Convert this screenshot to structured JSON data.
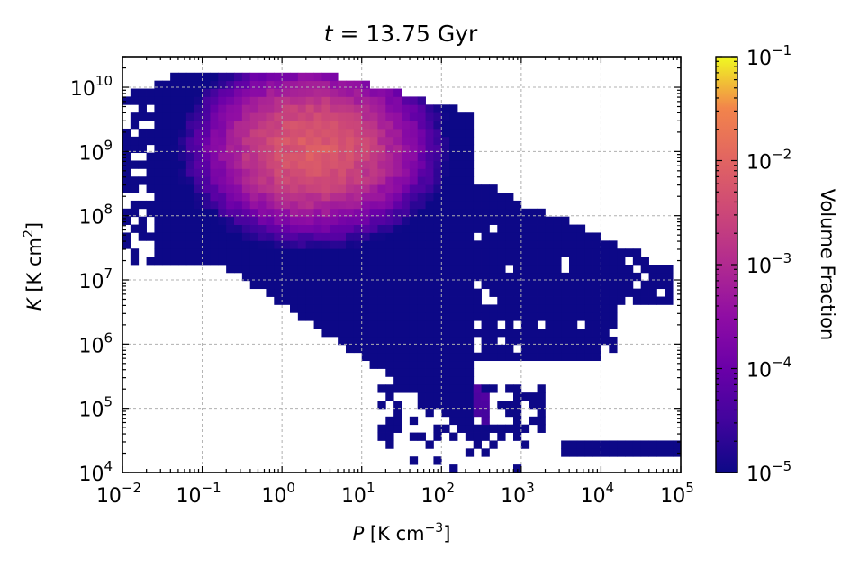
{
  "chart_data": {
    "type": "heatmap",
    "title": "t = 13.75 Gyr",
    "xlabel": "P [K cm^-3]",
    "ylabel": "K [K cm^2]",
    "x_scale": "log",
    "y_scale": "log",
    "xlim": [
      0.01,
      100000
    ],
    "ylim": [
      10000,
      30000000000
    ],
    "x_ticks": [
      {
        "exp": -2,
        "label": "10",
        "sup": "−2"
      },
      {
        "exp": -1,
        "label": "10",
        "sup": "−1"
      },
      {
        "exp": 0,
        "label": "10",
        "sup": "0"
      },
      {
        "exp": 1,
        "label": "10",
        "sup": "1"
      },
      {
        "exp": 2,
        "label": "10",
        "sup": "2"
      },
      {
        "exp": 3,
        "label": "10",
        "sup": "3"
      },
      {
        "exp": 4,
        "label": "10",
        "sup": "4"
      },
      {
        "exp": 5,
        "label": "10",
        "sup": "5"
      }
    ],
    "y_ticks": [
      {
        "exp": 4,
        "label": "10",
        "sup": "4"
      },
      {
        "exp": 5,
        "label": "10",
        "sup": "5"
      },
      {
        "exp": 6,
        "label": "10",
        "sup": "6"
      },
      {
        "exp": 7,
        "label": "10",
        "sup": "7"
      },
      {
        "exp": 8,
        "label": "10",
        "sup": "8"
      },
      {
        "exp": 9,
        "label": "10",
        "sup": "9"
      },
      {
        "exp": 10,
        "label": "10",
        "sup": "10"
      }
    ],
    "grid": true,
    "colormap": "plasma",
    "colorbar": {
      "label": "Volume Fraction",
      "scale": "log",
      "range": [
        1e-05,
        0.1
      ],
      "ticks": [
        {
          "exp": -5,
          "label": "10",
          "sup": "−5"
        },
        {
          "exp": -4,
          "label": "10",
          "sup": "−4"
        },
        {
          "exp": -3,
          "label": "10",
          "sup": "−3"
        },
        {
          "exp": -2,
          "label": "10",
          "sup": "−2"
        },
        {
          "exp": -1,
          "label": "10",
          "sup": "−1"
        }
      ]
    },
    "distribution": {
      "description_units": "log10 of P and K",
      "peak": {
        "log_P": 0.4,
        "log_K": 9.05,
        "log_fraction": -2.0
      },
      "main_lobe": {
        "log_P_range": [
          -2,
          2.4
        ],
        "log_K_range": [
          5.0,
          10.4
        ]
      },
      "diagonal_tail": {
        "from": [
          1.0,
          6.5
        ],
        "to": [
          2.6,
          5.0
        ]
      },
      "low_density_plateau": {
        "log_P_range": [
          1.6,
          4.9
        ],
        "log_K_range": [
          5.6,
          9.1
        ],
        "log_fraction": -5.0
      },
      "low_K_strip": {
        "log_P_range": [
          1.2,
          5.0
        ],
        "log_K_range": [
          4.0,
          5.4
        ],
        "log_fraction": -5.0
      }
    }
  }
}
